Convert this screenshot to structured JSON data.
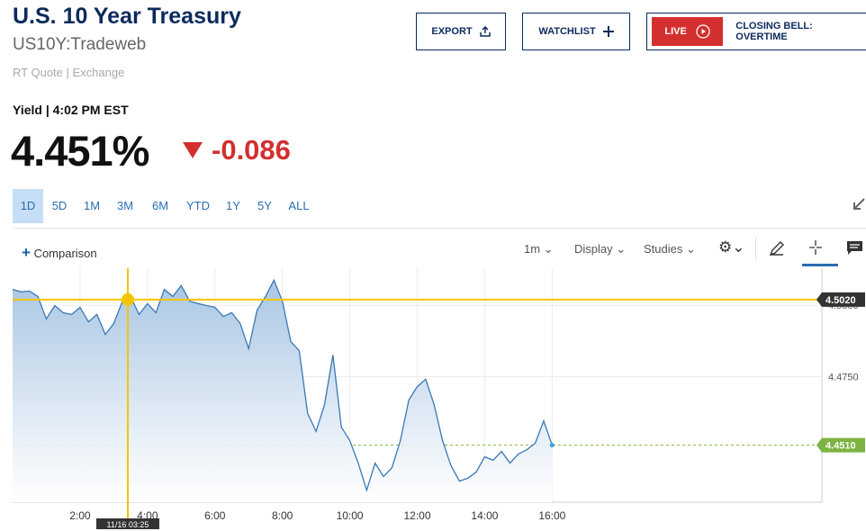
{
  "header": {
    "title": "U.S. 10 Year Treasury",
    "symbol": "US10Y:Tradeweb",
    "quote_source": "RT Quote | Exchange"
  },
  "buttons": {
    "export": "EXPORT",
    "watchlist": "WATCHLIST",
    "live": "LIVE",
    "live_show": "CLOSING BELL: OVERTIME"
  },
  "quote": {
    "label": "Yield | 4:02 PM EST",
    "price": "4.451%",
    "change": "-0.086"
  },
  "ranges": [
    "1D",
    "5D",
    "1M",
    "3M",
    "6M",
    "YTD",
    "1Y",
    "5Y",
    "ALL"
  ],
  "toolbar": {
    "comparison": "Comparison",
    "interval": "1m",
    "display": "Display",
    "studies": "Studies"
  },
  "chart_data": {
    "type": "line",
    "x": [
      0,
      0.25,
      0.5,
      0.75,
      1,
      1.25,
      1.5,
      1.75,
      2,
      2.25,
      2.5,
      2.75,
      3,
      3.25,
      3.4167,
      3.5,
      3.75,
      4,
      4.25,
      4.5,
      4.75,
      5,
      5.25,
      5.5,
      5.75,
      6,
      6.25,
      6.5,
      6.75,
      7,
      7.25,
      7.5,
      7.75,
      8,
      8.25,
      8.5,
      8.75,
      9,
      9.25,
      9.5,
      9.75,
      10,
      10.25,
      10.5,
      10.75,
      11,
      11.25,
      11.5,
      11.75,
      12,
      12.25,
      12.5,
      12.75,
      13,
      13.25,
      13.5,
      13.75,
      14,
      14.25,
      14.5,
      14.75,
      15,
      15.25,
      15.5,
      15.75,
      16
    ],
    "series": [
      {
        "color": "#3a78b5",
        "values": [
          4.5056,
          4.5047,
          4.505,
          4.5031,
          4.4952,
          4.4999,
          4.4974,
          4.4968,
          4.4993,
          4.4942,
          4.4968,
          4.4898,
          4.4936,
          4.5012,
          4.502,
          4.5031,
          4.4968,
          4.5006,
          4.4974,
          4.5056,
          4.5031,
          4.5069,
          4.5015,
          4.5006,
          4.4999,
          4.4993,
          4.4961,
          4.4974,
          4.4936,
          4.4848,
          4.4983,
          4.5031,
          4.5088,
          4.5015,
          4.4873,
          4.4841,
          4.4621,
          4.4558,
          4.4652,
          4.4826,
          4.4573,
          4.4526,
          4.4447,
          4.4352,
          4.4447,
          4.44,
          4.4431,
          4.4526,
          4.4668,
          4.4715,
          4.4741,
          4.4652,
          4.4526,
          4.4438,
          4.4384,
          4.4394,
          4.4416,
          4.4469,
          4.4457,
          4.4488,
          4.4447,
          4.4479,
          4.4494,
          4.4517,
          4.4595,
          4.451
        ]
      }
    ],
    "xlim": [
      0,
      24
    ],
    "ylim": [
      4.431,
      4.513
    ],
    "xticks": [
      {
        "value": 2,
        "label": "2:00"
      },
      {
        "value": 4,
        "label": "4:00"
      },
      {
        "value": 6,
        "label": "6:00"
      },
      {
        "value": 8,
        "label": "8:00"
      },
      {
        "value": 10,
        "label": "10:00"
      },
      {
        "value": 12,
        "label": "12:00"
      },
      {
        "value": 14,
        "label": "14:00"
      },
      {
        "value": 16,
        "label": "16:00"
      }
    ],
    "yticks": [
      {
        "value": 4.5,
        "label": "4.5000"
      },
      {
        "value": 4.475,
        "label": "4.4750"
      }
    ],
    "grid": true,
    "last_price": {
      "value": 4.451,
      "label": "4.4510",
      "color": "#7cb342"
    },
    "crosshair": {
      "x": 3.4167,
      "x_label": "11/16 03:25",
      "y": {
        "value": 4.502,
        "label": "4.5020"
      },
      "color": "#f5c400"
    }
  }
}
